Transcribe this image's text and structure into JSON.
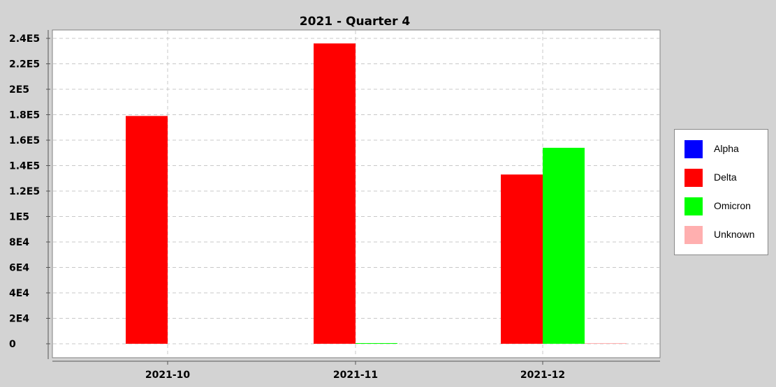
{
  "chart_data": {
    "type": "bar",
    "title": "2021 - Quarter 4",
    "categories": [
      "2021-10",
      "2021-11",
      "2021-12"
    ],
    "series": [
      {
        "name": "Alpha",
        "color": "#0000ff",
        "values": [
          0,
          0,
          0
        ]
      },
      {
        "name": "Delta",
        "color": "#ff0000",
        "values": [
          179000,
          236000,
          133000
        ]
      },
      {
        "name": "Omicron",
        "color": "#00ff00",
        "values": [
          0,
          400,
          154000
        ]
      },
      {
        "name": "Unknown",
        "color": "#ffafaf",
        "values": [
          0,
          0,
          300
        ]
      }
    ],
    "ylim": [
      -10000,
      242000
    ],
    "yticks": [
      {
        "value": 0,
        "label": "0"
      },
      {
        "value": 20000,
        "label": "2E4"
      },
      {
        "value": 40000,
        "label": "4E4"
      },
      {
        "value": 60000,
        "label": "6E4"
      },
      {
        "value": 80000,
        "label": "8E4"
      },
      {
        "value": 100000,
        "label": "1E5"
      },
      {
        "value": 120000,
        "label": "1.2E5"
      },
      {
        "value": 140000,
        "label": "1.4E5"
      },
      {
        "value": 160000,
        "label": "1.6E5"
      },
      {
        "value": 180000,
        "label": "1.8E5"
      },
      {
        "value": 200000,
        "label": "2E5"
      },
      {
        "value": 220000,
        "label": "2.2E5"
      },
      {
        "value": 240000,
        "label": "2.4E5"
      }
    ],
    "xlabel": "",
    "ylabel": "",
    "grid": true,
    "legend_position": "right"
  }
}
